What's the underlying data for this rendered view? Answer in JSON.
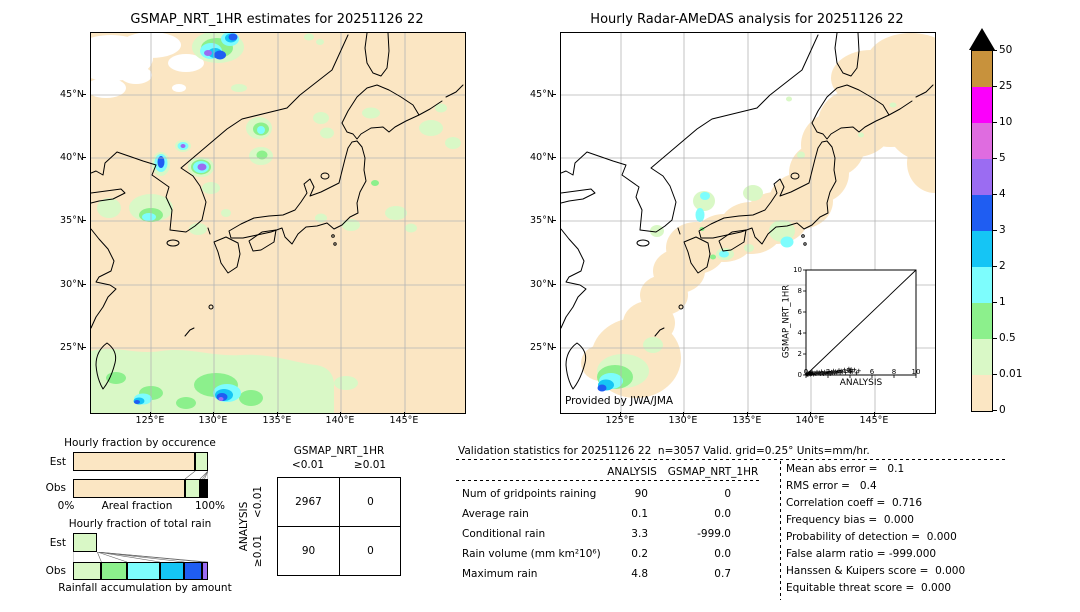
{
  "colors": {
    "background": "#ffffff",
    "map_background_left": "#fbe6c3",
    "map_background_right": "#ffffff",
    "grid": "#b4b4b4",
    "coastline": "#000000"
  },
  "chart_data": [
    {
      "type": "map",
      "title": "GSMAP_NRT_1HR estimates for 20251126 22",
      "x_ticks": [
        "125°E",
        "130°E",
        "135°E",
        "140°E",
        "145°E"
      ],
      "y_ticks": [
        "45°N",
        "40°N",
        "35°N",
        "30°N",
        "25°N"
      ]
    },
    {
      "type": "map",
      "title": "Hourly Radar-AMeDAS analysis for 20251126 22",
      "x_ticks": [
        "125°E",
        "130°E",
        "135°E",
        "140°E",
        "145°E"
      ],
      "y_ticks": [
        "45°N",
        "40°N",
        "35°N",
        "30°N",
        "25°N"
      ],
      "annotation": "Provided by JWA/JMA",
      "inset": {
        "type": "scatter",
        "xlabel": "ANALYSIS",
        "ylabel": "GSMAP_NRT_1HR",
        "xlim": [
          0,
          10
        ],
        "ylim": [
          0,
          10
        ],
        "xticks": [
          0,
          2,
          4,
          6,
          8,
          10
        ],
        "yticks": [
          0,
          2,
          4,
          6,
          8,
          10
        ],
        "identity_line": true,
        "marker": "+",
        "points": [
          [
            0.05,
            0.05
          ],
          [
            0.1,
            0.1
          ],
          [
            0.15,
            0.02
          ],
          [
            0.2,
            0.15
          ],
          [
            0.25,
            0.05
          ],
          [
            0.3,
            0.2
          ],
          [
            0.35,
            0.1
          ],
          [
            0.4,
            0.05
          ],
          [
            0.45,
            0.25
          ],
          [
            0.5,
            0.1
          ],
          [
            0.55,
            0.3
          ],
          [
            0.6,
            0.15
          ],
          [
            0.7,
            0.05
          ],
          [
            0.8,
            0.2
          ],
          [
            0.9,
            0.1
          ],
          [
            1.0,
            0.3
          ],
          [
            1.1,
            0.15
          ],
          [
            1.2,
            0.25
          ],
          [
            1.3,
            0.1
          ],
          [
            1.4,
            0.35
          ],
          [
            1.5,
            0.2
          ],
          [
            1.6,
            0.1
          ],
          [
            1.7,
            0.3
          ],
          [
            1.8,
            0.15
          ],
          [
            1.9,
            0.25
          ],
          [
            2.0,
            0.2
          ],
          [
            2.1,
            0.35
          ],
          [
            2.2,
            0.1
          ],
          [
            2.3,
            0.3
          ],
          [
            2.4,
            0.2
          ],
          [
            2.5,
            0.4
          ],
          [
            2.6,
            0.15
          ],
          [
            2.7,
            0.35
          ],
          [
            2.8,
            0.25
          ],
          [
            2.9,
            0.3
          ],
          [
            3.0,
            0.45
          ],
          [
            3.1,
            0.2
          ],
          [
            3.2,
            0.4
          ],
          [
            3.3,
            0.3
          ],
          [
            3.5,
            0.5
          ],
          [
            3.6,
            0.25
          ],
          [
            3.8,
            0.45
          ],
          [
            3.9,
            0.6
          ],
          [
            4.0,
            0.35
          ],
          [
            4.1,
            0.55
          ],
          [
            4.2,
            0.3
          ],
          [
            4.4,
            0.5
          ],
          [
            4.6,
            0.2
          ],
          [
            4.8,
            0.4
          ]
        ]
      }
    },
    {
      "type": "colorbar",
      "units": "mm/hr",
      "ticks": [
        "50",
        "25",
        "10",
        "5",
        "4",
        "3",
        "2",
        "1",
        "0.5",
        "0.01",
        "0"
      ],
      "colors_top_to_bottom": [
        "#c8923c",
        "#fb00fb",
        "#df6ce0",
        "#9b6cf2",
        "#1f5df2",
        "#15c5f5",
        "#7dfdfd",
        "#8cf08c",
        "#d9f8c6",
        "#fbe6c3"
      ],
      "overflow_triangle_color": "#000000"
    },
    {
      "type": "bar",
      "orientation": "horizontal_stacked",
      "title": "Hourly fraction by occurence",
      "categories": [
        "Est",
        "Obs"
      ],
      "xlabel": "Areal fraction",
      "x_axis_labels": [
        "0%",
        "100%"
      ],
      "series": [
        {
          "name": "Est",
          "segments": [
            {
              "color": "#fbe6c3",
              "from": 0,
              "to": 0.905
            },
            {
              "color": "#d9f8c6",
              "from": 0.905,
              "to": 1
            }
          ]
        },
        {
          "name": "Obs",
          "segments": [
            {
              "color": "#fbe6c3",
              "from": 0,
              "to": 0.83
            },
            {
              "color": "#d9f8c6",
              "from": 0.83,
              "to": 0.94
            },
            {
              "color": "#8cf08c",
              "from": 0.94,
              "to": 0.958
            },
            {
              "color": "#7dfdfd",
              "from": 0.958,
              "to": 0.972
            },
            {
              "color": "#15c5f5",
              "from": 0.972,
              "to": 0.985
            },
            {
              "color": "#1f5df2",
              "from": 0.985,
              "to": 1
            }
          ]
        }
      ]
    },
    {
      "type": "bar",
      "orientation": "horizontal_stacked",
      "title": "Hourly fraction of total rain",
      "categories": [
        "Est",
        "Obs"
      ],
      "xlabel": "Rainfall accumulation by amount",
      "series": [
        {
          "name": "Est",
          "segments": [
            {
              "color": "#d9f8c6",
              "from": 0,
              "to": 0.18
            }
          ]
        },
        {
          "name": "Obs",
          "segments": [
            {
              "color": "#d9f8c6",
              "from": 0,
              "to": 0.21
            },
            {
              "color": "#8cf08c",
              "from": 0.21,
              "to": 0.4
            },
            {
              "color": "#7dfdfd",
              "from": 0.4,
              "to": 0.645
            },
            {
              "color": "#15c5f5",
              "from": 0.645,
              "to": 0.825
            },
            {
              "color": "#1f5df2",
              "from": 0.825,
              "to": 0.955
            },
            {
              "color": "#9b6cf2",
              "from": 0.955,
              "to": 1
            }
          ]
        }
      ]
    },
    {
      "type": "table",
      "title": "GSMAP_NRT_1HR",
      "col_labels": [
        "<0.01",
        "≥0.01"
      ],
      "row_axis_label": "ANALYSIS",
      "row_labels": [
        "<0.01",
        "≥0.01"
      ],
      "cells": [
        [
          "2967",
          "0"
        ],
        [
          "90",
          "0"
        ]
      ]
    },
    {
      "type": "table",
      "title": "Validation statistics for 20251126 22  n=3057 Valid. grid=0.25° Units=mm/hr.",
      "columns": [
        "ANALYSIS",
        "GSMAP_NRT_1HR"
      ],
      "rows": [
        {
          "label": "Num of gridpoints raining",
          "analysis": "90",
          "gsmap": "0"
        },
        {
          "label": "Average rain",
          "analysis": "0.1",
          "gsmap": "0.0"
        },
        {
          "label": "Conditional rain",
          "analysis": "3.3",
          "gsmap": "-999.0"
        },
        {
          "label": "Rain volume (mm km²10⁶)",
          "analysis": "0.2",
          "gsmap": "0.0"
        },
        {
          "label": "Maximum rain",
          "analysis": "4.8",
          "gsmap": "0.7"
        }
      ],
      "scores": [
        "Mean abs error =   0.1",
        "RMS error =   0.4",
        "Correlation coeff =  0.716",
        "Frequency bias =  0.000",
        "Probability of detection =  0.000",
        "False alarm ratio = -999.000",
        "Hanssen & Kuipers score =  0.000",
        "Equitable threat score =  0.000"
      ]
    }
  ]
}
